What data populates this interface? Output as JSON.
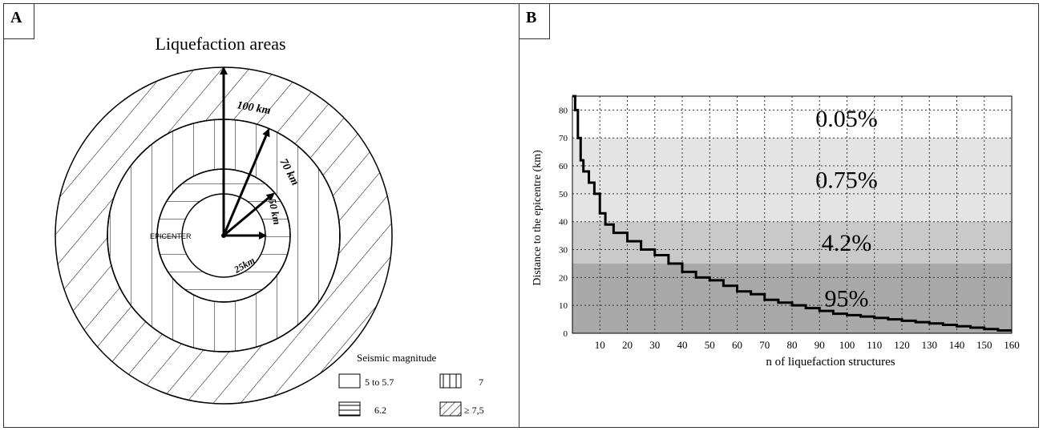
{
  "panel_a": {
    "label": "A",
    "title": "Liquefaction areas",
    "center_label": "EPICENTER",
    "radii": [
      {
        "text": "100 km"
      },
      {
        "text": "70 km"
      },
      {
        "text": "50 km"
      },
      {
        "text": "25km"
      }
    ],
    "legend": {
      "title": "Seismic magnitude",
      "items": [
        {
          "text": "5 to 5.7",
          "pattern": "empty"
        },
        {
          "text": "7",
          "pattern": "vertical"
        },
        {
          "text": "6.2",
          "pattern": "horizontal"
        },
        {
          "text": "≥ 7,5",
          "pattern": "diagonal"
        }
      ]
    }
  },
  "panel_b": {
    "label": "B",
    "bands": [
      {
        "text": "0.05%",
        "from": 70,
        "to": 85,
        "color": "#ffffff"
      },
      {
        "text": "0.75%",
        "from": 40,
        "to": 70,
        "color": "#e4e4e4"
      },
      {
        "text": "4.2%",
        "from": 25,
        "to": 40,
        "color": "#c9c9c9"
      },
      {
        "text": "95%",
        "from": 0,
        "to": 25,
        "color": "#a9a9a9"
      }
    ]
  },
  "chart_data": {
    "type": "line",
    "xlabel": "n of liquefaction structures",
    "ylabel": "Distance to the epicentre (km)",
    "xlim": [
      0,
      160
    ],
    "ylim": [
      0,
      85
    ],
    "xticks": [
      10,
      20,
      30,
      40,
      50,
      60,
      70,
      80,
      90,
      100,
      110,
      120,
      130,
      140,
      150,
      160
    ],
    "yticks": [
      0,
      10,
      20,
      30,
      40,
      50,
      60,
      70,
      80
    ],
    "grid": true,
    "series": [
      {
        "x": [
          0,
          1,
          2,
          3,
          4,
          6,
          8,
          10,
          12,
          15,
          20,
          25,
          30,
          35,
          40,
          45,
          50,
          55,
          60,
          65,
          70,
          75,
          80,
          85,
          90,
          95,
          100,
          105,
          110,
          115,
          120,
          125,
          130,
          135,
          140,
          145,
          150,
          155,
          160
        ],
        "y": [
          85,
          80,
          70,
          62,
          58,
          54,
          50,
          43,
          39,
          36,
          33,
          30,
          28,
          25,
          22,
          20,
          19,
          17,
          15,
          14,
          12,
          11,
          10,
          9,
          8,
          7,
          6.5,
          6,
          5.5,
          5,
          4.5,
          4,
          3.5,
          3,
          2.5,
          2,
          1.5,
          1,
          1
        ]
      }
    ]
  }
}
